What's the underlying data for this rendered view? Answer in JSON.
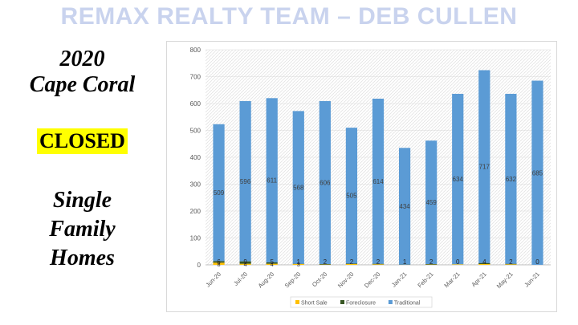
{
  "banner": "REMAX REALTY TEAM – DEB CULLEN",
  "left": {
    "year": "2020",
    "city": "Cape Coral",
    "status": "CLOSED",
    "line1": "Single",
    "line2": "Family",
    "line3": "Homes"
  },
  "colors": {
    "traditional": "#5b9bd5",
    "foreclosure": "#375623",
    "short_sale": "#ffc000",
    "status_highlight": "#ffff00"
  },
  "chart_data": {
    "type": "bar",
    "stacked": true,
    "categories": [
      "Jun-20",
      "Jul-20",
      "Aug-20",
      "Sep-20",
      "Oct-20",
      "Nov-20",
      "Dec-20",
      "Jan-21",
      "Feb-21",
      "Mar-21",
      "Apr-21",
      "May-21",
      "Jun-21"
    ],
    "series": [
      {
        "name": "Short Sale",
        "values": [
          8,
          4,
          4,
          3,
          1,
          3,
          2,
          0,
          1,
          2,
          3,
          2,
          0
        ]
      },
      {
        "name": "Foreclosure",
        "values": [
          6,
          9,
          5,
          1,
          2,
          2,
          2,
          1,
          2,
          0,
          4,
          2,
          0
        ]
      },
      {
        "name": "Traditional",
        "values": [
          509,
          596,
          611,
          568,
          606,
          505,
          614,
          434,
          459,
          634,
          717,
          632,
          685
        ]
      }
    ],
    "data_labels": {
      "Short Sale": [
        "8",
        "4",
        "4",
        "3",
        "",
        "",
        "",
        "",
        "",
        "",
        "",
        "",
        ""
      ],
      "Foreclosure": [
        "6",
        "9",
        "5",
        "1",
        "2",
        "2",
        "2",
        "1",
        "2",
        "0",
        "4",
        "2",
        "0"
      ],
      "Traditional": [
        "509",
        "596",
        "611",
        "568",
        "606",
        "505",
        "614",
        "434",
        "459",
        "634",
        "717",
        "632",
        "685"
      ]
    },
    "ylim": [
      0,
      800
    ],
    "yticks": [
      "0",
      "100",
      "200",
      "300",
      "400",
      "500",
      "600",
      "700",
      "800"
    ],
    "grid": true,
    "legend": "bottom"
  }
}
